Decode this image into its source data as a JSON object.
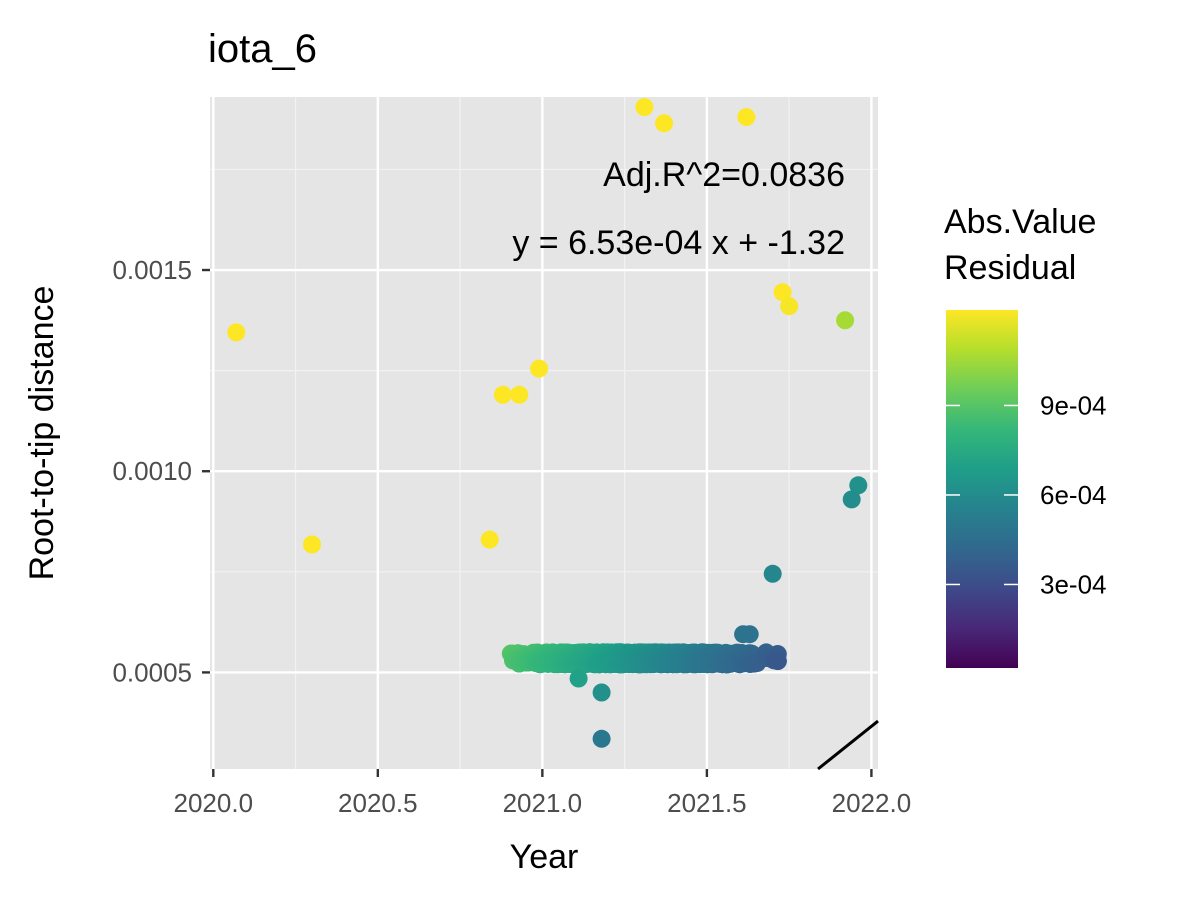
{
  "chart_data": {
    "type": "scatter",
    "title": "iota_6",
    "xlabel": "Year",
    "ylabel": "Root-to-tip distance",
    "xlim": [
      2019.99,
      2022.02
    ],
    "ylim": [
      0.00026,
      0.00193
    ],
    "x_ticks": [
      {
        "value": 2020.0,
        "label": "2020.0"
      },
      {
        "value": 2020.5,
        "label": "2020.5"
      },
      {
        "value": 2021.0,
        "label": "2021.0"
      },
      {
        "value": 2021.5,
        "label": "2021.5"
      },
      {
        "value": 2022.0,
        "label": "2022.0"
      }
    ],
    "y_ticks": [
      {
        "value": 0.0005,
        "label": "0.0005"
      },
      {
        "value": 0.001,
        "label": "0.0010"
      },
      {
        "value": 0.0015,
        "label": "0.0015"
      }
    ],
    "grid": true,
    "regression": {
      "slope": 0.000653,
      "intercept": -1.32,
      "equation_label": "y = 6.53e-04 x + -1.32",
      "r2_label": "Adj.R^2=0.0836"
    },
    "color_scale": {
      "title_line1": "Abs.Value",
      "title_line2": "Residual",
      "palette": "viridis",
      "colors": [
        "#440154",
        "#482878",
        "#3E4A89",
        "#31688E",
        "#26828E",
        "#1F9E89",
        "#35B779",
        "#6DCD59",
        "#B4DE2C",
        "#FDE725"
      ],
      "min": 2e-05,
      "max": 0.00122,
      "ticks": [
        {
          "value": 0.0003,
          "label": "3e-04"
        },
        {
          "value": 0.0006,
          "label": "6e-04"
        },
        {
          "value": 0.0009,
          "label": "9e-04"
        }
      ],
      "legend_position": "right"
    },
    "outliers": [
      {
        "x": 2020.07,
        "y": 0.001345
      },
      {
        "x": 2020.3,
        "y": 0.000818
      },
      {
        "x": 2021.18,
        "y": 0.000335
      },
      {
        "x": 2021.94,
        "y": 0.00093
      },
      {
        "x": 2021.96,
        "y": 0.000965
      },
      {
        "x": 2021.92,
        "y": 0.001375
      },
      {
        "x": 2021.73,
        "y": 0.001445
      },
      {
        "x": 2021.75,
        "y": 0.00141
      },
      {
        "x": 2021.31,
        "y": 0.001905
      },
      {
        "x": 2021.37,
        "y": 0.001865
      },
      {
        "x": 2021.62,
        "y": 0.00188
      },
      {
        "x": 2020.99,
        "y": 0.001255
      },
      {
        "x": 2020.88,
        "y": 0.00119
      },
      {
        "x": 2020.93,
        "y": 0.00119
      },
      {
        "x": 2020.84,
        "y": 0.00083
      },
      {
        "x": 2021.7,
        "y": 0.000745
      },
      {
        "x": 2021.61,
        "y": 0.000595
      },
      {
        "x": 2021.63,
        "y": 0.000595
      },
      {
        "x": 2021.18,
        "y": 0.00045
      },
      {
        "x": 2021.11,
        "y": 0.000485
      }
    ],
    "cloud_density": {
      "x_range": [
        2020.9,
        2021.72
      ],
      "y_range": [
        0.00052,
        0.00188
      ],
      "min_y_floor": 0.00052
    }
  }
}
